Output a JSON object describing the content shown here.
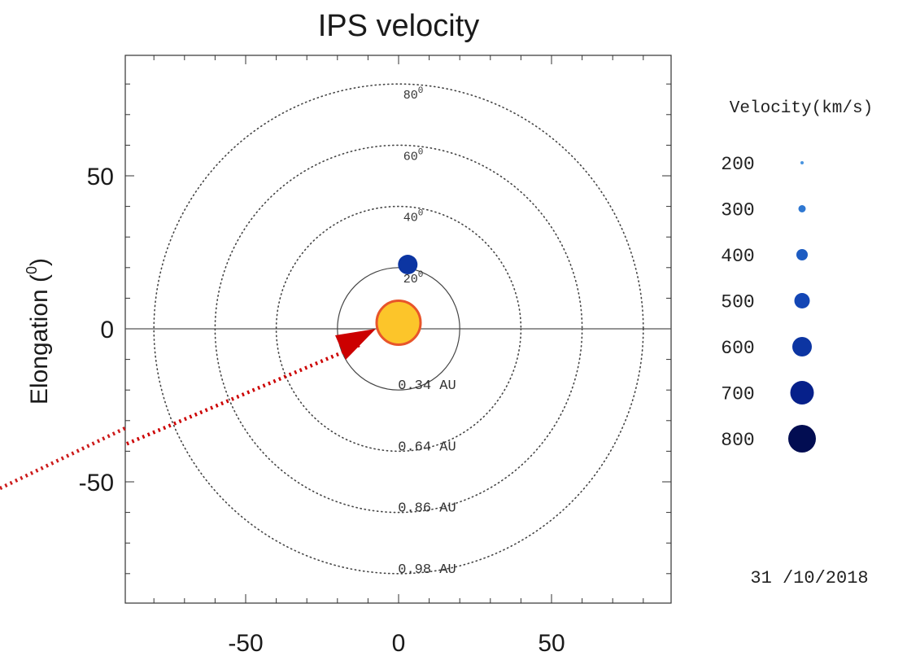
{
  "chart_data": {
    "type": "scatter",
    "title": "IPS velocity",
    "xlabel": "",
    "ylabel": "Elongation (",
    "ylabel_sup": "0",
    "xlim": [
      -90,
      90
    ],
    "ylim": [
      -90,
      90
    ],
    "x_ticks": [
      {
        "value": -50,
        "label": "-50"
      },
      {
        "value": 0,
        "label": "0"
      },
      {
        "value": 50,
        "label": "50"
      }
    ],
    "y_ticks": [
      {
        "value": 50,
        "label": "50"
      },
      {
        "value": 0,
        "label": "0"
      },
      {
        "value": -50,
        "label": "-50"
      }
    ],
    "elongation_circles": [
      {
        "radius": 20,
        "label": "20",
        "label_sup": "0",
        "au_label": "0.34 AU",
        "style": "solid"
      },
      {
        "radius": 40,
        "label": "40",
        "label_sup": "0",
        "au_label": "0.64 AU",
        "style": "dotted"
      },
      {
        "radius": 60,
        "label": "60",
        "label_sup": "0",
        "au_label": "0.86 AU",
        "style": "dotted"
      },
      {
        "radius": 80,
        "label": "80",
        "label_sup": "0",
        "au_label": "0.98 AU",
        "style": "dotted"
      }
    ],
    "sun": {
      "x": 0,
      "y": 2,
      "color": "#fcc52a",
      "edge_color": "#e8552a"
    },
    "points": [
      {
        "x": 3,
        "y": 21,
        "velocity": 600
      }
    ],
    "earth_direction_arrow": {
      "from": [
        -130,
        -55
      ],
      "to": [
        -12,
        -5
      ],
      "color": "#cc0000"
    },
    "legend": {
      "title": "Velocity(km/s)",
      "placement": "right",
      "entries": [
        {
          "label": "200",
          "value": 200,
          "color": "#4a95e0"
        },
        {
          "label": "300",
          "value": 300,
          "color": "#2f78d2"
        },
        {
          "label": "400",
          "value": 400,
          "color": "#1d5cc2"
        },
        {
          "label": "500",
          "value": 500,
          "color": "#1346b5"
        },
        {
          "label": "600",
          "value": 600,
          "color": "#0c35a2"
        },
        {
          "label": "700",
          "value": 700,
          "color": "#06208a"
        },
        {
          "label": "800",
          "value": 800,
          "color": "#020d52"
        }
      ]
    },
    "date": "31 /10/2018",
    "grid": false
  }
}
